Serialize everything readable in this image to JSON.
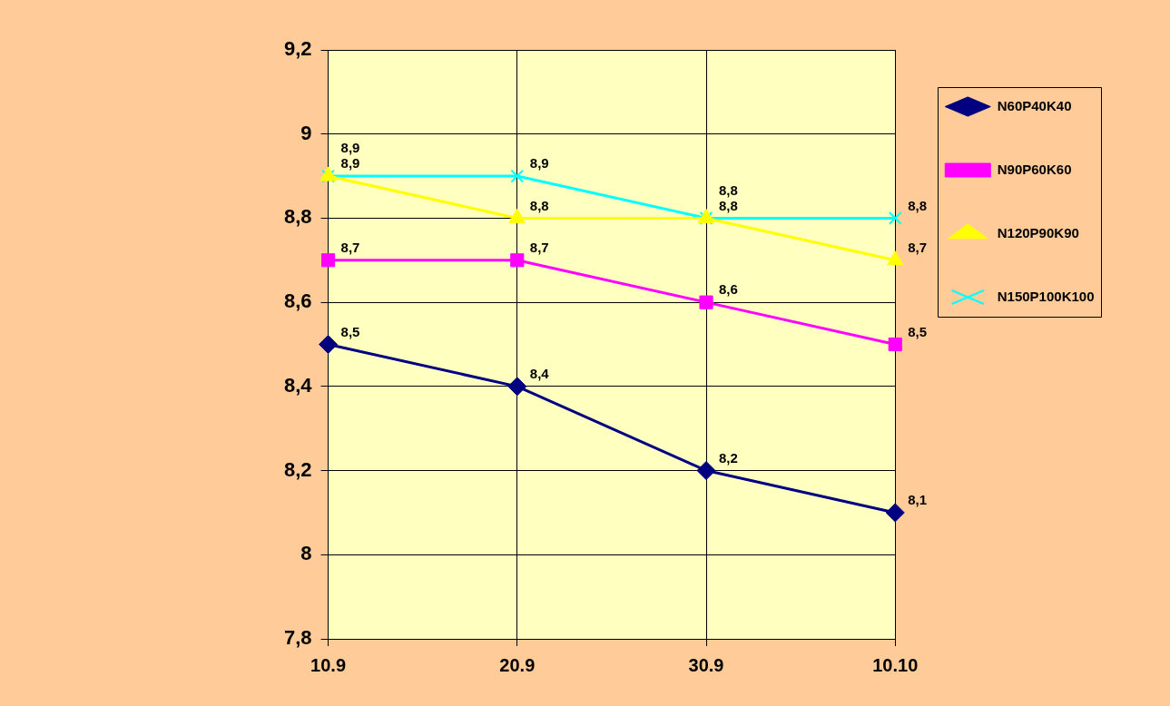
{
  "chart_data": {
    "type": "line",
    "categories": [
      "10.9",
      "20.9",
      "30.9",
      "10.10"
    ],
    "ylim": [
      7.8,
      9.2
    ],
    "yticks": [
      {
        "value": 7.8,
        "label": "7,8"
      },
      {
        "value": 8,
        "label": "8"
      },
      {
        "value": 8.2,
        "label": "8,2"
      },
      {
        "value": 8.4,
        "label": "8,4"
      },
      {
        "value": 8.6,
        "label": "8,6"
      },
      {
        "value": 8.8,
        "label": "8,8"
      },
      {
        "value": 9,
        "label": "9"
      },
      {
        "value": 9.2,
        "label": "9,2"
      }
    ],
    "grid": true,
    "legend": "top right",
    "line_style": "solid",
    "series": [
      {
        "name": "N60P40K40",
        "color": "#000080",
        "marker": "diamond",
        "values": [
          8.5,
          8.4,
          8.2,
          8.1
        ],
        "value_labels": [
          "8,5",
          "8,4",
          "8,2",
          "8,1"
        ]
      },
      {
        "name": "N90P60K60",
        "color": "#ff00ff",
        "marker": "square",
        "values": [
          8.7,
          8.7,
          8.6,
          8.5
        ],
        "value_labels": [
          "8,7",
          "8,7",
          "8,6",
          "8,5"
        ]
      },
      {
        "name": "N120P90K90",
        "color": "#ffff00",
        "marker": "triangle",
        "values": [
          8.9,
          8.8,
          8.8,
          8.7
        ],
        "value_labels": [
          "8,9",
          "8,8",
          "8,8",
          "8,7"
        ]
      },
      {
        "name": "N150P100K100",
        "color": "#00ffff",
        "marker": "cross",
        "values": [
          8.9,
          8.9,
          8.8,
          8.8
        ],
        "value_labels": [
          "8,9",
          "8,9",
          "8,8",
          "8,8"
        ]
      }
    ]
  }
}
